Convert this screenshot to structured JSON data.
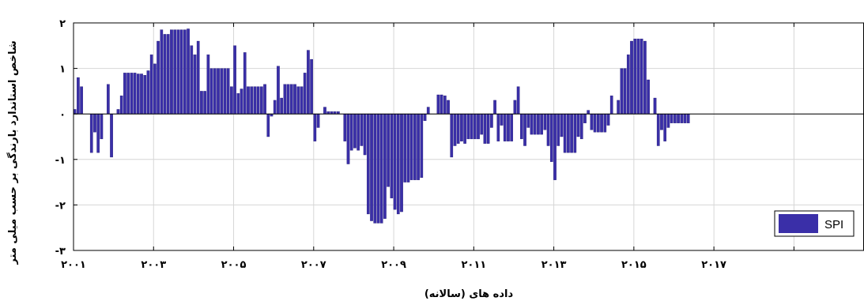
{
  "chart_data": {
    "type": "bar",
    "xlabel": "داده های (سالانه)",
    "ylabel": "شاخص استاندارد بارندگی بر حسب میلی متر",
    "ylim": [
      -3,
      2
    ],
    "xlim": [
      2001,
      2020.75
    ],
    "grid": true,
    "legend": "bottom-right",
    "bar_color": "#3a2fa8",
    "x_ticks": [
      {
        "value": 2001,
        "label": "۲۰۰۱"
      },
      {
        "value": 2003,
        "label": "۲۰۰۳"
      },
      {
        "value": 2005,
        "label": "۲۰۰۵"
      },
      {
        "value": 2007,
        "label": "۲۰۰۷"
      },
      {
        "value": 2009,
        "label": "۲۰۰۹"
      },
      {
        "value": 2011,
        "label": "۲۰۱۱"
      },
      {
        "value": 2013,
        "label": "۲۰۱۳"
      },
      {
        "value": 2015,
        "label": "۲۰۱۵"
      },
      {
        "value": 2017,
        "label": "۲۰۱۷"
      },
      {
        "value": 2019,
        "label": ""
      }
    ],
    "y_ticks": [
      {
        "value": 2,
        "label": "۲"
      },
      {
        "value": 1,
        "label": "۱"
      },
      {
        "value": 0,
        "label": "۰"
      },
      {
        "value": -1,
        "label": "-۱"
      },
      {
        "value": -2,
        "label": "-۲"
      },
      {
        "value": -3,
        "label": "-۳"
      }
    ],
    "series": [
      {
        "name": "SPI",
        "x_start": 2001,
        "step": 0.0833,
        "values": [
          0.1,
          0.8,
          0.6,
          0,
          0,
          -0.85,
          -0.4,
          -0.85,
          -0.55,
          0,
          0.65,
          -0.95,
          0,
          0.1,
          0.4,
          0.9,
          0.9,
          0.9,
          0.9,
          0.88,
          0.88,
          0.85,
          0.95,
          1.3,
          1.1,
          1.6,
          1.85,
          1.75,
          1.75,
          1.85,
          1.85,
          1.85,
          1.85,
          1.85,
          1.87,
          1.5,
          1.3,
          1.6,
          0.5,
          0.5,
          1.3,
          1.0,
          1.0,
          1.0,
          1.0,
          1.0,
          1.0,
          0.6,
          1.5,
          0.45,
          0.55,
          1.35,
          0.6,
          0.6,
          0.6,
          0.6,
          0.6,
          0.65,
          -0.5,
          -0.05,
          0.3,
          1.05,
          0.35,
          0.65,
          0.65,
          0.65,
          0.65,
          0.6,
          0.6,
          0.9,
          1.4,
          1.2,
          -0.6,
          -0.3,
          0,
          0.15,
          0.05,
          0.05,
          0.05,
          0.05,
          0,
          -0.6,
          -1.1,
          -0.8,
          -0.75,
          -0.8,
          -0.7,
          -0.9,
          -2.2,
          -2.35,
          -2.4,
          -2.4,
          -2.4,
          -2.3,
          -1.6,
          -1.85,
          -2.1,
          -2.2,
          -2.15,
          -1.5,
          -1.5,
          -1.45,
          -1.45,
          -1.45,
          -1.4,
          -0.15,
          0.15,
          0,
          0,
          0.42,
          0.42,
          0.4,
          0.3,
          -0.95,
          -0.7,
          -0.65,
          -0.6,
          -0.65,
          -0.55,
          -0.55,
          -0.55,
          -0.55,
          -0.45,
          -0.65,
          -0.65,
          -0.3,
          0.3,
          -0.6,
          -0.25,
          -0.6,
          -0.6,
          -0.6,
          0.3,
          0.6,
          -0.55,
          -0.7,
          -0.3,
          -0.45,
          -0.45,
          -0.45,
          -0.45,
          -0.35,
          -0.7,
          -1.05,
          -1.45,
          -0.7,
          -0.5,
          -0.85,
          -0.85,
          -0.85,
          -0.85,
          -0.5,
          -0.55,
          -0.2,
          0.08,
          -0.35,
          -0.4,
          -0.4,
          -0.4,
          -0.4,
          -0.25,
          0.4,
          0,
          0.3,
          1.0,
          1.0,
          1.3,
          1.6,
          1.65,
          1.65,
          1.65,
          1.6,
          0.75,
          0,
          0.35,
          -0.7,
          -0.35,
          -0.6,
          -0.3,
          -0.2,
          -0.2,
          -0.2,
          -0.2,
          -0.2,
          -0.2
        ]
      }
    ]
  }
}
